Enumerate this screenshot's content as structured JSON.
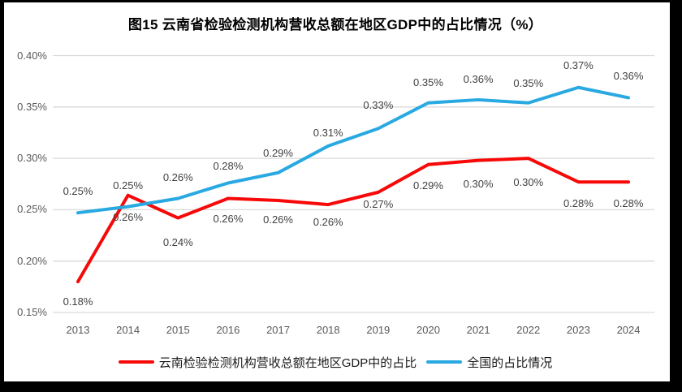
{
  "figure": {
    "title": "图15 云南省检验检测机构营收总额在地区GDP中的占比情况（%）"
  },
  "chart_data": {
    "type": "line",
    "title": "图15 云南省检验检测机构营收总额在地区GDP中的占比情况（%）",
    "xlabel": "",
    "ylabel": "",
    "x": [
      "2013",
      "2014",
      "2015",
      "2016",
      "2017",
      "2018",
      "2019",
      "2020",
      "2021",
      "2022",
      "2023",
      "2024"
    ],
    "y_axis": {
      "ticks": [
        "0.40%",
        "0.35%",
        "0.30%",
        "0.25%",
        "0.20%",
        "0.15%"
      ],
      "min": 0.15,
      "max": 0.4,
      "unit": "%"
    },
    "grid": true,
    "legend_position": "bottom",
    "colors": {
      "yunnan_red": "#F70909",
      "national_blue": "#29A9E1",
      "gridline": "#D9D9D9"
    },
    "series": [
      {
        "id": "yunnan",
        "name": "云南检验检测机构营收总额在地区GDP中的占比",
        "color": "#F70909",
        "values": [
          0.18,
          0.264,
          0.242,
          0.261,
          0.259,
          0.255,
          0.267,
          0.294,
          0.298,
          0.3,
          0.277,
          0.277
        ],
        "labels": [
          "0.18%",
          "0.26%",
          "0.24%",
          "0.26%",
          "0.26%",
          "0.26%",
          "0.27%",
          "0.29%",
          "0.30%",
          "0.30%",
          "0.28%",
          "0.28%"
        ],
        "label_side": "below",
        "label_dy": [
          25,
          27,
          30,
          26,
          24,
          22,
          15,
          26,
          29,
          30,
          27,
          27
        ]
      },
      {
        "id": "national",
        "name": "全国的占比情况",
        "color": "#29A9E1",
        "values": [
          0.247,
          0.253,
          0.261,
          0.276,
          0.286,
          0.312,
          0.329,
          0.354,
          0.357,
          0.354,
          0.369,
          0.359
        ],
        "labels": [
          "0.25%",
          "0.25%",
          "0.26%",
          "0.28%",
          "0.29%",
          "0.31%",
          "0.33%",
          "0.35%",
          "0.36%",
          "0.35%",
          "0.37%",
          "0.36%"
        ],
        "label_side": "above",
        "label_dy": [
          -26,
          -26,
          -25,
          -20,
          -24,
          -16,
          -28,
          -25,
          -25,
          -24,
          -27,
          -26
        ]
      }
    ]
  }
}
